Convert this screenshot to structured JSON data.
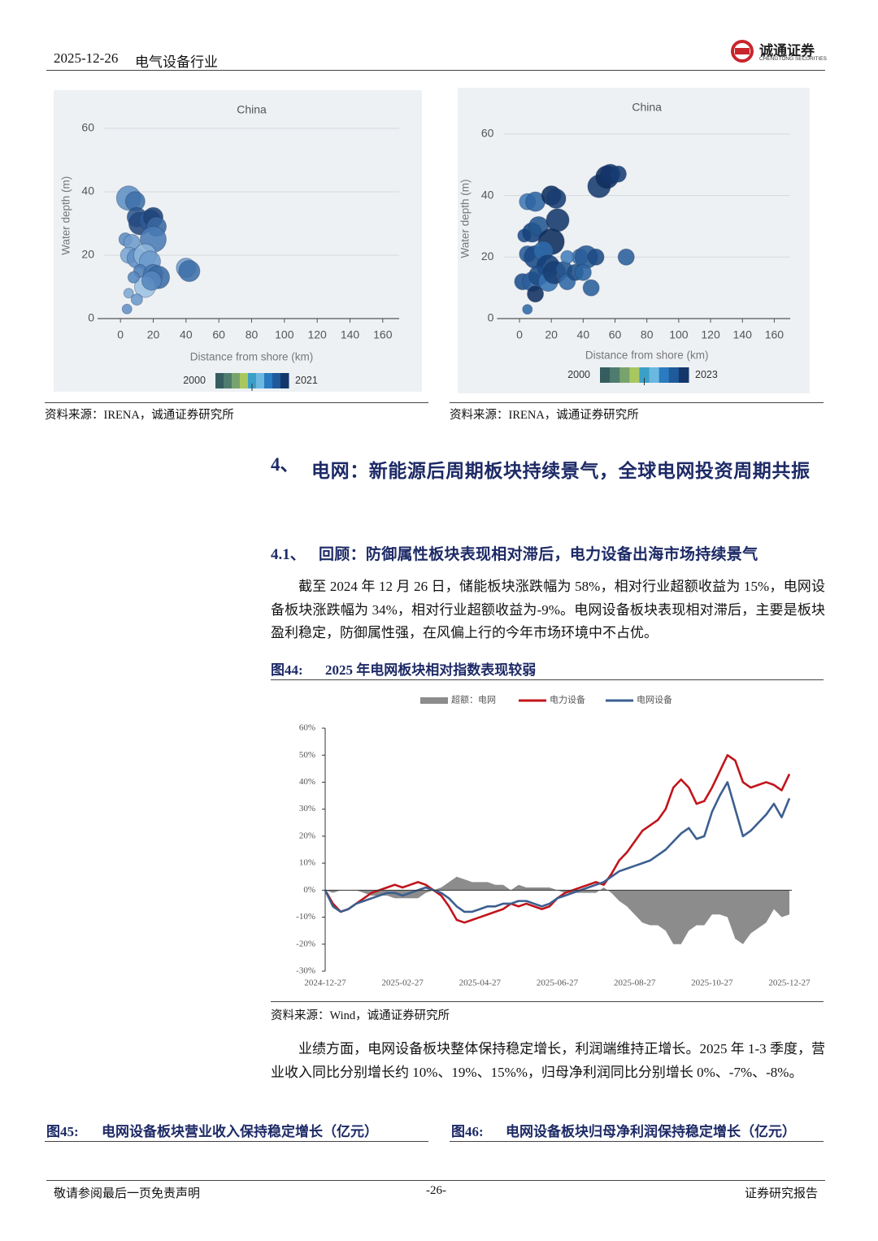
{
  "header": {
    "date": "2025-12-26",
    "industry": "电气设备行业",
    "company": "诚通证券",
    "company_en": "CHENGTONG SECURITIES"
  },
  "sources": {
    "left": "资料来源：IRENA，诚通证券研究所",
    "right": "资料来源：IRENA，诚通证券研究所",
    "fig44": "资料来源：Wind，诚通证券研究所"
  },
  "section": {
    "number": "4、",
    "title": "电网：新能源后周期板块持续景气，全球电网投资周期共振"
  },
  "subsection": {
    "number": "4.1、",
    "title": "回顾：防御属性板块表现相对滞后，电力设备出海市场持续景气"
  },
  "paragraphs": [
    "截至 2024 年 12 月 26 日，储能板块涨跌幅为 58%，相对行业超额收益为 15%，电网设备板块涨跌幅为 34%，相对行业超额收益为-9%。电网设备板块表现相对滞后，主要是板块盈利稳定，防御属性强，在风偏上行的今年市场环境中不占优。",
    "业绩方面，电网设备板块整体保持稳定增长，利润端维持正增长。2025 年 1-3 季度，营业收入同比分别增长约 10%、19%、15%%，归母净利润同比分别增长 0%、-7%、-8%。"
  ],
  "figures": {
    "fig44": {
      "number": "图44:",
      "title": "2025 年电网板块相对指数表现较弱"
    },
    "fig45": {
      "number": "图45:",
      "title": "电网设备板块营业收入保持稳定增长（亿元）"
    },
    "fig46": {
      "number": "图46:",
      "title": "电网设备板块归母净利润保持稳定增长（亿元）"
    }
  },
  "footer": {
    "disclaimer": "敬请参阅最后一页免责声明",
    "page": "-26-",
    "doc_type": "证券研究报告"
  },
  "chart_data": [
    {
      "type": "bubble",
      "title": "China",
      "x_label": "Distance from shore (km)",
      "y_label": "Water depth (m)",
      "xlim": [
        -10,
        170
      ],
      "ylim": [
        0,
        65
      ],
      "xticks": [
        0,
        20,
        40,
        60,
        80,
        100,
        120,
        140,
        160
      ],
      "yticks": [
        0,
        20,
        40,
        60
      ],
      "grid": true,
      "x": [
        5,
        9,
        10,
        12,
        18,
        20,
        22,
        20,
        3,
        7,
        5,
        10,
        15,
        18,
        12,
        20,
        23,
        15,
        19,
        40,
        42,
        5,
        10,
        4,
        8
      ],
      "y": [
        38,
        37,
        32,
        30,
        31,
        32,
        29,
        25,
        25,
        24,
        20,
        19,
        20,
        18,
        15,
        14,
        13,
        10,
        12,
        16,
        15,
        8,
        6,
        3,
        13
      ],
      "sizes": [
        15,
        12,
        12,
        14,
        13,
        12,
        12,
        16,
        8,
        10,
        10,
        12,
        14,
        13,
        8,
        12,
        14,
        13,
        12,
        12,
        13,
        6,
        7,
        6,
        7
      ],
      "colors": [
        "#5f8fc4",
        "#3f6fa8",
        "#2c5690",
        "#24497f",
        "#2d5a95",
        "#1f4378",
        "#3a68a2",
        "#4a7bb5",
        "#5c8cc2",
        "#6f9bcc",
        "#7aa6d3",
        "#5d8dc3",
        "#8db5dc",
        "#6a99cb",
        "#4d7eb7",
        "#4576b0",
        "#3c6ca6",
        "#9cc1e2",
        "#5585bd",
        "#6e9ccc",
        "#3e6ea7",
        "#7fa9d4",
        "#6b99ca",
        "#6391c6",
        "#5686bf"
      ],
      "colorbar": {
        "range": [
          2000,
          2021
        ],
        "colors": [
          "#355d5f",
          "#4f7c6f",
          "#79a36d",
          "#a9c75f",
          "#3aa0c9",
          "#6bb8e0",
          "#2a7bbf",
          "#1f5a9a",
          "#14376b"
        ]
      }
    },
    {
      "type": "bubble",
      "title": "China",
      "x_label": "Distance from shore (km)",
      "y_label": "Water depth (m)",
      "xlim": [
        -10,
        170
      ],
      "ylim": [
        0,
        65
      ],
      "xticks": [
        0,
        20,
        40,
        60,
        80,
        100,
        120,
        140,
        160
      ],
      "yticks": [
        0,
        20,
        40,
        60
      ],
      "grid": true,
      "x": [
        5,
        10,
        3,
        8,
        12,
        20,
        23,
        24,
        20,
        5,
        10,
        15,
        18,
        2,
        8,
        12,
        18,
        22,
        10,
        28,
        30,
        35,
        38,
        42,
        48,
        45,
        50,
        55,
        57,
        62,
        67,
        5,
        30,
        40
      ],
      "y": [
        38,
        38,
        27,
        28,
        30,
        40,
        39,
        32,
        25,
        21,
        20,
        22,
        17,
        12,
        12,
        14,
        12,
        15,
        8,
        16,
        12,
        15,
        20,
        20,
        20,
        10,
        43,
        46,
        47,
        47,
        20,
        3,
        20,
        15
      ],
      "sizes": [
        10,
        12,
        8,
        12,
        12,
        12,
        12,
        14,
        16,
        10,
        14,
        12,
        14,
        10,
        12,
        12,
        12,
        14,
        10,
        10,
        10,
        10,
        10,
        14,
        10,
        10,
        14,
        14,
        12,
        10,
        10,
        6,
        8,
        10
      ],
      "colors": [
        "#3f78b5",
        "#2e64a2",
        "#1f4f8c",
        "#15427d",
        "#24568f",
        "#0f2f60",
        "#183e72",
        "#13386b",
        "#0d2c5c",
        "#2a5c98",
        "#1a4a86",
        "#2d69a8",
        "#14407a",
        "#1d4f8c",
        "#2b5f9c",
        "#1c4c88",
        "#3371b0",
        "#183f74",
        "#112f60",
        "#26588f",
        "#2f67a5",
        "#1e4d87",
        "#3b72ae",
        "#285b96",
        "#1d4b85",
        "#2a5e9b",
        "#173b6e",
        "#0f2e5e",
        "#12346a",
        "#173e74",
        "#2a5e9b",
        "#2f6aa8",
        "#4480bd",
        "#2b64a2"
      ],
      "colorbar": {
        "range": [
          2000,
          2023
        ],
        "colors": [
          "#355d5f",
          "#4f7c6f",
          "#79a36d",
          "#a9c75f",
          "#3aa0c9",
          "#6bb8e0",
          "#2a7bbf",
          "#1f5a9a",
          "#14376b"
        ]
      }
    },
    {
      "type": "line",
      "grid": false,
      "categories": [
        "2024-12-27",
        null,
        null,
        null,
        null,
        null,
        null,
        null,
        null,
        null,
        "2025-02-27",
        null,
        null,
        null,
        null,
        null,
        null,
        null,
        null,
        null,
        "2025-04-27",
        null,
        null,
        null,
        null,
        null,
        null,
        null,
        null,
        null,
        "2025-06-27",
        null,
        null,
        null,
        null,
        null,
        null,
        null,
        null,
        null,
        "2025-08-27",
        null,
        null,
        null,
        null,
        null,
        null,
        null,
        null,
        null,
        "2025-10-27",
        null,
        null,
        null,
        null,
        null,
        null,
        null,
        null,
        null,
        "2025-12-27"
      ],
      "ylim": [
        -30,
        60
      ],
      "yticks": [
        {
          "value": -30,
          "label": "-30%"
        },
        {
          "value": -20,
          "label": "-20%"
        },
        {
          "value": -10,
          "label": "-10%"
        },
        {
          "value": 0,
          "label": "0%"
        },
        {
          "value": 10,
          "label": "10%"
        },
        {
          "value": 20,
          "label": "20%"
        },
        {
          "value": 30,
          "label": "30%"
        },
        {
          "value": 40,
          "label": "40%"
        },
        {
          "value": 50,
          "label": "50%"
        },
        {
          "value": 60,
          "label": "60%"
        }
      ],
      "series": [
        {
          "name": "超额：电网",
          "color": "#8c8c8c",
          "style": "area",
          "values": [
            0,
            -1,
            0,
            0,
            0,
            -1,
            -2,
            -2,
            -2,
            -3,
            -3,
            -3,
            -3,
            -1,
            0,
            1,
            3,
            5,
            4,
            3,
            3,
            3,
            2,
            2,
            0,
            2,
            1,
            1,
            1,
            1,
            0,
            -1,
            -1,
            -1,
            -1,
            -1,
            1,
            -1,
            -4,
            -6,
            -9,
            -12,
            -13,
            -13,
            -15,
            -20,
            -20,
            -15,
            -13,
            -13,
            -9,
            -9,
            -10,
            -18,
            -20,
            -16,
            -14,
            -12,
            -7,
            -10,
            -9
          ]
        },
        {
          "name": "电力设备",
          "color": "#c0151b",
          "style": "line",
          "values": [
            0,
            -5,
            -8,
            -7,
            -5,
            -3,
            -1,
            0,
            1,
            2,
            1,
            2,
            3,
            2,
            0,
            -2,
            -6,
            -11,
            -12,
            -11,
            -10,
            -9,
            -8,
            -7,
            -5,
            -6,
            -5,
            -6,
            -7,
            -6,
            -3,
            -1,
            0,
            1,
            2,
            3,
            2,
            6,
            11,
            14,
            18,
            22,
            24,
            26,
            30,
            38,
            41,
            38,
            32,
            33,
            38,
            44,
            50,
            48,
            40,
            38,
            39,
            40,
            39,
            37,
            43
          ]
        },
        {
          "name": "电网设备",
          "color": "#3c5f8f",
          "style": "line",
          "values": [
            0,
            -6,
            -8,
            -7,
            -5,
            -4,
            -3,
            -2,
            -1,
            -1,
            -2,
            -1,
            0,
            1,
            0,
            -1,
            -3,
            -6,
            -8,
            -8,
            -7,
            -6,
            -6,
            -5,
            -5,
            -4,
            -4,
            -5,
            -6,
            -5,
            -3,
            -2,
            -1,
            0,
            1,
            2,
            3,
            5,
            7,
            8,
            9,
            10,
            11,
            13,
            15,
            18,
            21,
            23,
            19,
            20,
            29,
            35,
            40,
            30,
            20,
            22,
            25,
            28,
            32,
            27,
            34
          ]
        }
      ]
    }
  ]
}
